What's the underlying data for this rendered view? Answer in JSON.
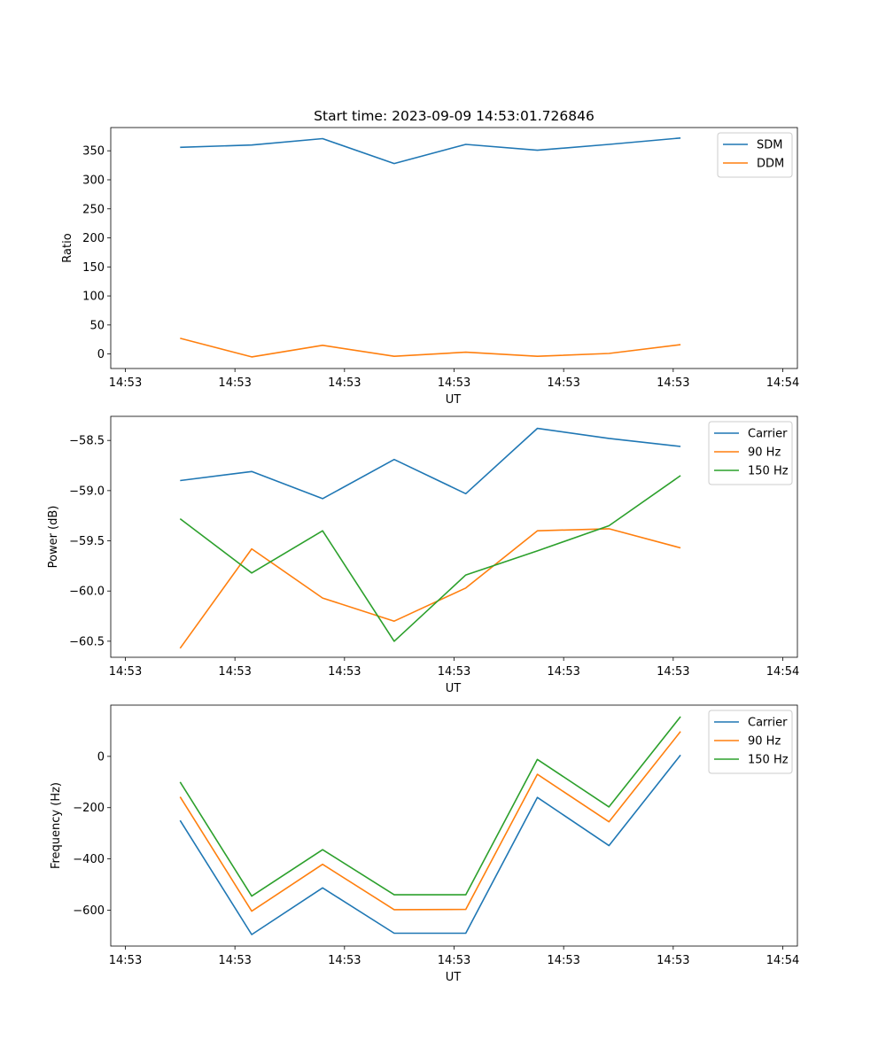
{
  "chart_data": [
    {
      "type": "line",
      "title": "Start time: 2023-09-09 14:53:01.726846",
      "xlabel": "UT",
      "ylabel": "Ratio",
      "xlim": [
        -0.2,
        9.2
      ],
      "ylim": [
        -25,
        390
      ],
      "x_ticks": [
        0,
        1.5,
        3,
        4.5,
        6,
        7.5,
        9
      ],
      "x_tick_labels": [
        "14:53",
        "14:53",
        "14:53",
        "14:53",
        "14:53",
        "14:53",
        "14:54"
      ],
      "y_ticks": [
        0,
        50,
        100,
        150,
        200,
        250,
        300,
        350
      ],
      "y_tick_labels": [
        "0",
        "50",
        "100",
        "150",
        "200",
        "250",
        "300",
        "350"
      ],
      "legend_position": "top-right",
      "x": [
        0.75,
        1.73,
        2.7,
        3.68,
        4.66,
        5.64,
        6.62,
        7.6
      ],
      "series": [
        {
          "name": "SDM",
          "color": "#1f77b4",
          "values": [
            356,
            360,
            371,
            328,
            361,
            351,
            361,
            372
          ]
        },
        {
          "name": "DDM",
          "color": "#ff7f0e",
          "values": [
            27,
            -5,
            15,
            -4,
            3,
            -4,
            1,
            16
          ]
        }
      ]
    },
    {
      "type": "line",
      "xlabel": "UT",
      "ylabel": "Power (dB)",
      "xlim": [
        -0.2,
        9.2
      ],
      "ylim": [
        -60.66,
        -58.26
      ],
      "x_ticks": [
        0,
        1.5,
        3,
        4.5,
        6,
        7.5,
        9
      ],
      "x_tick_labels": [
        "14:53",
        "14:53",
        "14:53",
        "14:53",
        "14:53",
        "14:53",
        "14:54"
      ],
      "y_ticks": [
        -60.5,
        -60.0,
        -59.5,
        -59.0,
        -58.5
      ],
      "y_tick_labels": [
        "−60.5",
        "−60.0",
        "−59.5",
        "−59.0",
        "−58.5"
      ],
      "legend_position": "top-right",
      "x": [
        0.75,
        1.73,
        2.7,
        3.68,
        4.66,
        5.64,
        6.62,
        7.6
      ],
      "series": [
        {
          "name": "Carrier",
          "color": "#1f77b4",
          "values": [
            -58.9,
            -58.81,
            -59.08,
            -58.69,
            -59.03,
            -58.38,
            -58.48,
            -58.56
          ]
        },
        {
          "name": "90 Hz",
          "color": "#ff7f0e",
          "values": [
            -60.57,
            -59.58,
            -60.07,
            -60.3,
            -59.97,
            -59.4,
            -59.38,
            -59.57
          ]
        },
        {
          "name": "150 Hz",
          "color": "#2ca02c",
          "values": [
            -59.28,
            -59.82,
            -59.4,
            -60.5,
            -59.84,
            -59.6,
            -59.35,
            -58.85
          ]
        }
      ]
    },
    {
      "type": "line",
      "xlabel": "UT",
      "ylabel": "Frequency (Hz)",
      "xlim": [
        -0.2,
        9.2
      ],
      "ylim": [
        -740,
        200
      ],
      "x_ticks": [
        0,
        1.5,
        3,
        4.5,
        6,
        7.5,
        9
      ],
      "x_tick_labels": [
        "14:53",
        "14:53",
        "14:53",
        "14:53",
        "14:53",
        "14:53",
        "14:54"
      ],
      "y_ticks": [
        -600,
        -400,
        -200,
        0
      ],
      "y_tick_labels": [
        "−600",
        "−400",
        "−200",
        "0"
      ],
      "legend_position": "top-right",
      "x": [
        0.75,
        1.73,
        2.7,
        3.68,
        4.66,
        5.64,
        6.62,
        7.6
      ],
      "series": [
        {
          "name": "Carrier",
          "color": "#1f77b4",
          "values": [
            -250,
            -695,
            -513,
            -690,
            -690,
            -160,
            -348,
            5
          ]
        },
        {
          "name": "90 Hz",
          "color": "#ff7f0e",
          "values": [
            -158,
            -604,
            -421,
            -598,
            -597,
            -70,
            -255,
            97
          ]
        },
        {
          "name": "150 Hz",
          "color": "#2ca02c",
          "values": [
            -100,
            -545,
            -364,
            -540,
            -540,
            -12,
            -197,
            155
          ]
        }
      ]
    }
  ]
}
